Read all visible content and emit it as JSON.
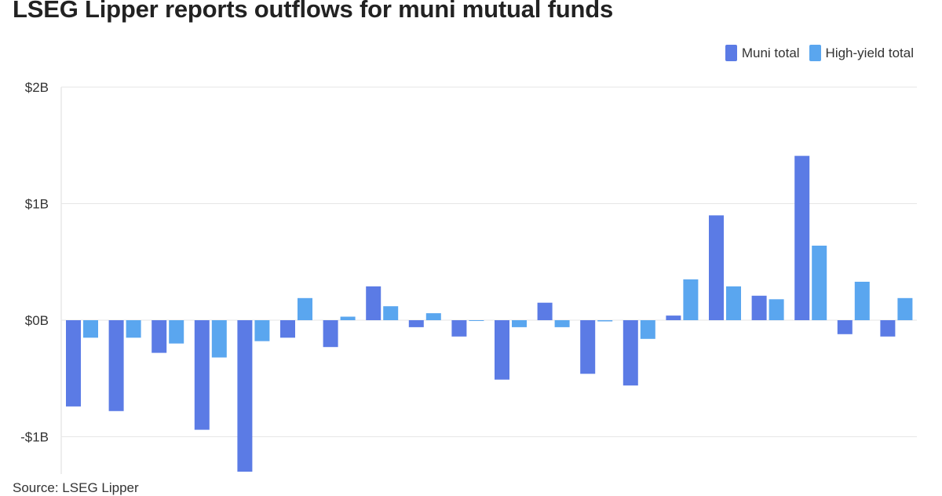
{
  "title": "LSEG Lipper reports outflows for muni mutual funds",
  "source": "Source: LSEG Lipper",
  "legend": [
    {
      "label": "Muni total",
      "color": "#5b7be5"
    },
    {
      "label": "High-yield total",
      "color": "#5aa6ef"
    }
  ],
  "chart_data": {
    "type": "bar",
    "title": "LSEG Lipper reports outflows for muni mutual funds",
    "xlabel": "",
    "ylabel": "",
    "ylim": [
      -1.3,
      2
    ],
    "yticks": [
      {
        "value": 2,
        "label": "$2B"
      },
      {
        "value": 1,
        "label": "$1B"
      },
      {
        "value": 0,
        "label": "$0B"
      },
      {
        "value": -1,
        "label": "-$1B"
      }
    ],
    "grid": true,
    "legend_position": "top-right",
    "series": [
      {
        "name": "Muni total",
        "color": "#5b7be5",
        "values": [
          -0.74,
          -0.78,
          -0.28,
          -0.94,
          -1.3,
          -0.15,
          -0.23,
          0.29,
          -0.06,
          -0.14,
          -0.51,
          0.15,
          -0.46,
          -0.56,
          0.04,
          0.9,
          0.21,
          1.41,
          -0.12,
          -0.14
        ]
      },
      {
        "name": "High-yield total",
        "color": "#5aa6ef",
        "values": [
          -0.15,
          -0.15,
          -0.2,
          -0.32,
          -0.18,
          0.19,
          0.03,
          0.12,
          0.06,
          0.0,
          -0.06,
          -0.06,
          -0.01,
          -0.16,
          0.35,
          0.29,
          0.18,
          0.64,
          0.33,
          0.19
        ]
      }
    ]
  }
}
